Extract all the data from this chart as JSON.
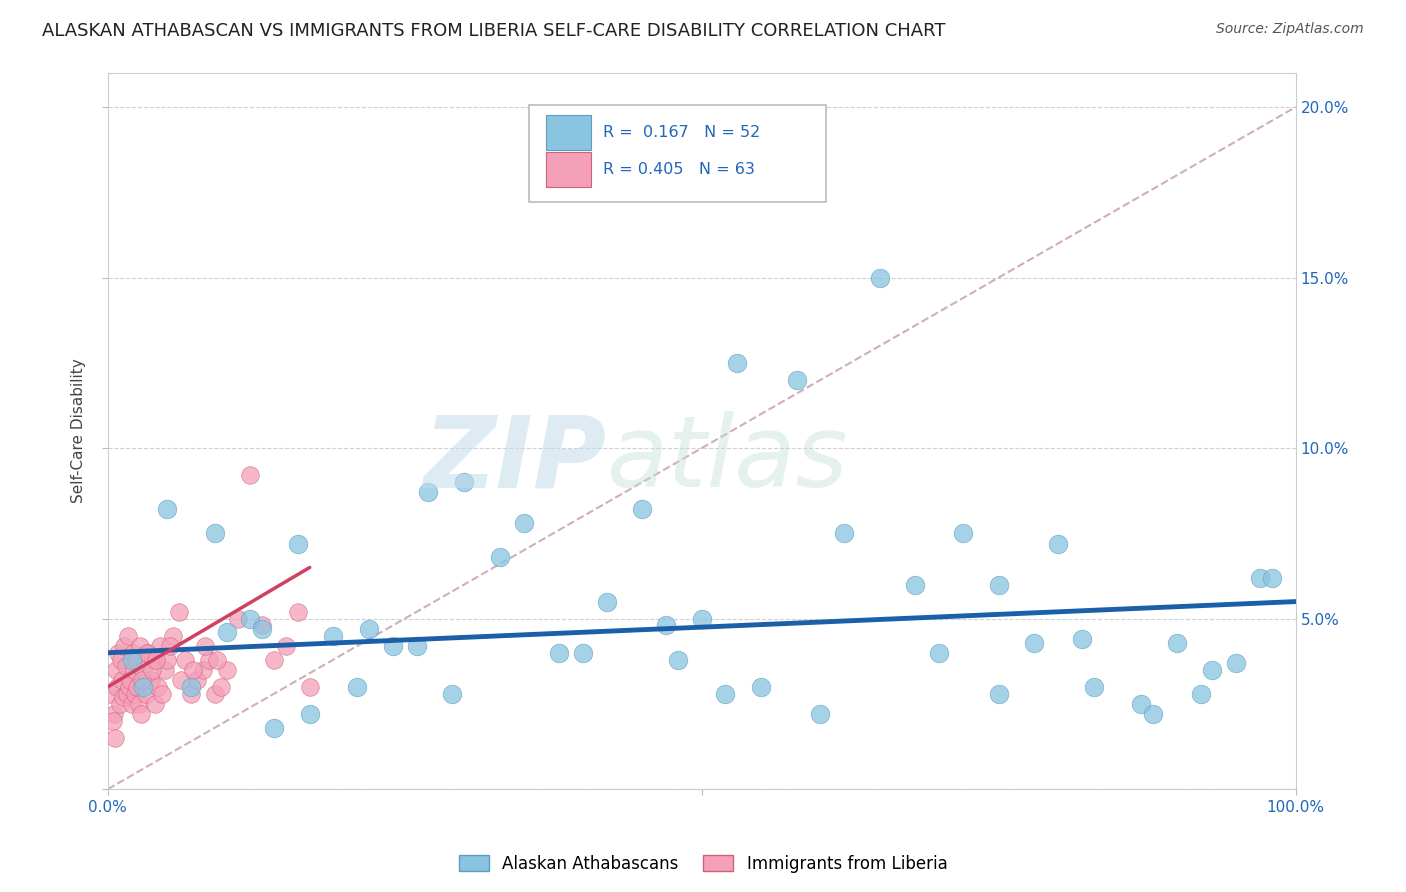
{
  "title": "ALASKAN ATHABASCAN VS IMMIGRANTS FROM LIBERIA SELF-CARE DISABILITY CORRELATION CHART",
  "source": "Source: ZipAtlas.com",
  "ylabel": "Self-Care Disability",
  "xlim": [
    0.0,
    1.0
  ],
  "ylim": [
    0.0,
    0.21
  ],
  "blue_color": "#89c4e1",
  "blue_edge_color": "#5a9fc0",
  "pink_color": "#f4a0b8",
  "pink_edge_color": "#d06080",
  "blue_line_color": "#1a5fa8",
  "pink_line_color": "#d04060",
  "dash_color": "#c8a0b0",
  "grid_color": "#d0d0d0",
  "bg_color": "#ffffff",
  "legend_R1": "0.167",
  "legend_N1": "52",
  "legend_R2": "0.405",
  "legend_N2": "63",
  "blue_x": [
    0.02,
    0.05,
    0.07,
    0.09,
    0.12,
    0.14,
    0.16,
    0.19,
    0.21,
    0.24,
    0.27,
    0.3,
    0.35,
    0.38,
    0.42,
    0.45,
    0.48,
    0.5,
    0.53,
    0.55,
    0.58,
    0.62,
    0.65,
    0.68,
    0.72,
    0.75,
    0.78,
    0.8,
    0.83,
    0.87,
    0.9,
    0.92,
    0.95,
    0.97,
    0.1,
    0.13,
    0.17,
    0.22,
    0.26,
    0.29,
    0.33,
    0.4,
    0.47,
    0.52,
    0.6,
    0.7,
    0.75,
    0.82,
    0.88,
    0.93,
    0.98,
    0.03
  ],
  "blue_y": [
    0.038,
    0.082,
    0.03,
    0.075,
    0.05,
    0.018,
    0.072,
    0.045,
    0.03,
    0.042,
    0.087,
    0.09,
    0.078,
    0.04,
    0.055,
    0.082,
    0.038,
    0.05,
    0.125,
    0.03,
    0.12,
    0.075,
    0.15,
    0.06,
    0.075,
    0.028,
    0.043,
    0.072,
    0.03,
    0.025,
    0.043,
    0.028,
    0.037,
    0.062,
    0.046,
    0.047,
    0.022,
    0.047,
    0.042,
    0.028,
    0.068,
    0.04,
    0.048,
    0.028,
    0.022,
    0.04,
    0.06,
    0.044,
    0.022,
    0.035,
    0.062,
    0.03
  ],
  "pink_x": [
    0.003,
    0.005,
    0.007,
    0.008,
    0.009,
    0.01,
    0.011,
    0.012,
    0.013,
    0.014,
    0.015,
    0.016,
    0.017,
    0.018,
    0.019,
    0.02,
    0.021,
    0.022,
    0.023,
    0.024,
    0.025,
    0.026,
    0.027,
    0.028,
    0.03,
    0.032,
    0.034,
    0.036,
    0.038,
    0.04,
    0.042,
    0.044,
    0.046,
    0.048,
    0.05,
    0.055,
    0.06,
    0.065,
    0.07,
    0.075,
    0.08,
    0.085,
    0.09,
    0.095,
    0.1,
    0.11,
    0.12,
    0.13,
    0.14,
    0.15,
    0.16,
    0.17,
    0.004,
    0.006,
    0.029,
    0.033,
    0.037,
    0.041,
    0.052,
    0.062,
    0.072,
    0.082,
    0.092
  ],
  "pink_y": [
    0.028,
    0.022,
    0.035,
    0.03,
    0.04,
    0.025,
    0.038,
    0.032,
    0.027,
    0.042,
    0.036,
    0.028,
    0.045,
    0.03,
    0.032,
    0.025,
    0.04,
    0.035,
    0.028,
    0.038,
    0.03,
    0.025,
    0.042,
    0.022,
    0.035,
    0.028,
    0.04,
    0.032,
    0.038,
    0.025,
    0.03,
    0.042,
    0.028,
    0.035,
    0.038,
    0.045,
    0.052,
    0.038,
    0.028,
    0.032,
    0.035,
    0.038,
    0.028,
    0.03,
    0.035,
    0.05,
    0.092,
    0.048,
    0.038,
    0.042,
    0.052,
    0.03,
    0.02,
    0.015,
    0.032,
    0.04,
    0.035,
    0.038,
    0.042,
    0.032,
    0.035,
    0.042,
    0.038
  ]
}
